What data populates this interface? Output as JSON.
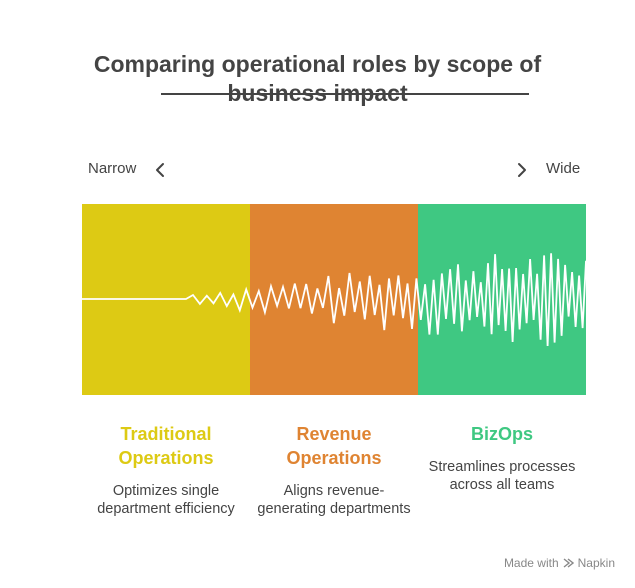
{
  "title": "Comparing operational roles by scope of business impact",
  "scale": {
    "left_label": "Narrow",
    "right_label": "Wide"
  },
  "colors": {
    "traditional": "#DDCA14",
    "revenue": "#DF8432",
    "bizops": "#3FC882",
    "text": "#444444"
  },
  "categories": [
    {
      "title": "Traditional Operations",
      "description": "Optimizes single department efficiency",
      "color": "#DDCA14"
    },
    {
      "title": "Revenue Operations",
      "description": "Aligns revenue-generating departments",
      "color": "#DF8432"
    },
    {
      "title": "BizOps",
      "description": "Streamlines processes across all teams",
      "color": "#3FC882"
    }
  ],
  "footer": {
    "made_with": "Made with",
    "brand": "Napkin",
    "icon": "napkin-logo-icon"
  },
  "icons": {
    "left": "chevron-left-icon",
    "right": "chevron-right-icon"
  }
}
